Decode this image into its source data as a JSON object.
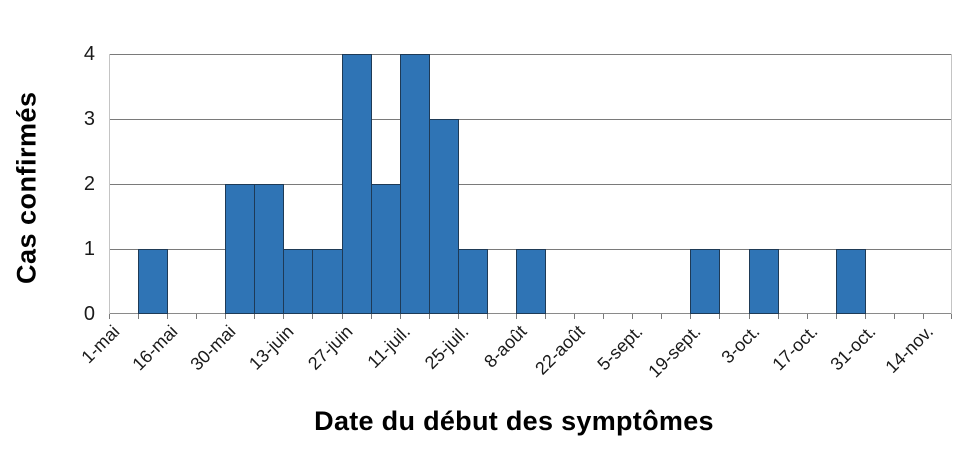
{
  "chart_data": {
    "type": "bar",
    "title": "",
    "xlabel": "Date du début des symptômes",
    "ylabel": "Cas confirmés",
    "bins": 29,
    "values": [
      0,
      1,
      0,
      0,
      2,
      2,
      1,
      1,
      4,
      2,
      4,
      3,
      1,
      0,
      1,
      0,
      0,
      0,
      0,
      0,
      1,
      0,
      1,
      0,
      0,
      1,
      0,
      0,
      0
    ],
    "x_tick_labels": [
      "1-mai",
      "16-mai",
      "30-mai",
      "13-juin",
      "27-juin",
      "11-juil.",
      "25-juil.",
      "8-août",
      "22-août",
      "5-sept.",
      "19-sept.",
      "3-oct.",
      "17-oct.",
      "31-oct.",
      "14-nov."
    ],
    "x_label_every_n_bins": 2,
    "y_ticks": [
      "0",
      "1",
      "2",
      "3",
      "4"
    ],
    "ylim": [
      0,
      4
    ],
    "grid": true,
    "legend": "none",
    "colors": {
      "bar_fill": "#2F74B5",
      "bar_border": "#1E3A56",
      "gridline": "#7A7A7A",
      "axis_border": "#C4C4C4",
      "baseline": "#8A8A8A",
      "tick": "#7A7A7A"
    }
  }
}
